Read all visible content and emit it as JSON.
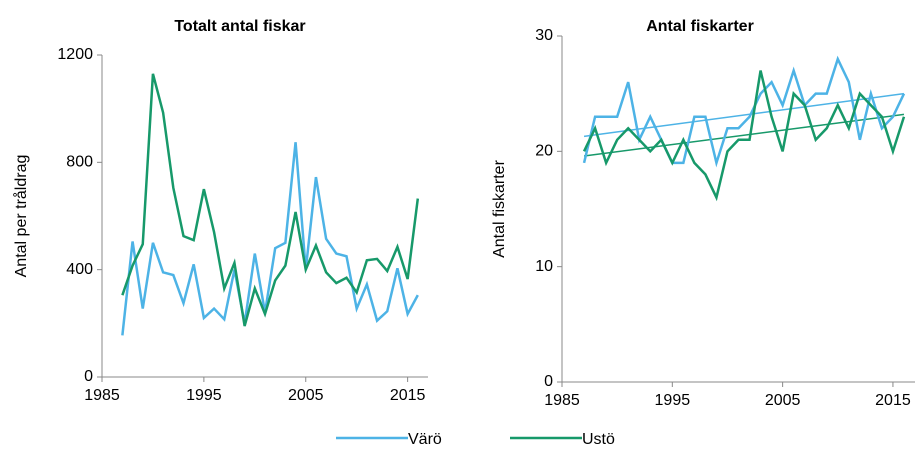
{
  "chart_data": [
    {
      "type": "line",
      "title": "Totalt antal fiskar",
      "y_label": "Antal per tråldrag",
      "x": [
        1987,
        1988,
        1989,
        1990,
        1991,
        1992,
        1993,
        1994,
        1995,
        1996,
        1997,
        1998,
        1999,
        2000,
        2001,
        2002,
        2003,
        2004,
        2005,
        2006,
        2007,
        2008,
        2009,
        2010,
        2011,
        2012,
        2013,
        2014,
        2015,
        2016
      ],
      "series": [
        {
          "name": "Värö",
          "color": "#4db3e6",
          "values": [
            155,
            505,
            255,
            500,
            390,
            380,
            275,
            420,
            220,
            255,
            215,
            400,
            200,
            460,
            240,
            480,
            500,
            875,
            400,
            745,
            515,
            460,
            450,
            255,
            345,
            210,
            245,
            405,
            235,
            305
          ]
        },
        {
          "name": "Ustö",
          "color": "#17996a",
          "values": [
            305,
            415,
            495,
            1130,
            985,
            705,
            525,
            510,
            700,
            540,
            330,
            425,
            190,
            330,
            235,
            360,
            415,
            615,
            400,
            490,
            390,
            350,
            370,
            315,
            435,
            440,
            395,
            485,
            365,
            665
          ]
        }
      ],
      "xlim": [
        1985,
        2017
      ],
      "xticks": [
        1985,
        1995,
        2005,
        2015
      ],
      "ylim": [
        0,
        1200
      ],
      "yticks": [
        0,
        400,
        800,
        1200
      ]
    },
    {
      "type": "line",
      "title": "Antal fiskarter",
      "y_label": "Antal fiskarter",
      "x": [
        1987,
        1988,
        1989,
        1990,
        1991,
        1992,
        1993,
        1994,
        1995,
        1996,
        1997,
        1998,
        1999,
        2000,
        2001,
        2002,
        2003,
        2004,
        2005,
        2006,
        2007,
        2008,
        2009,
        2010,
        2011,
        2012,
        2013,
        2014,
        2015,
        2016
      ],
      "series": [
        {
          "color": "#4db3e6",
          "values": [
            19,
            23,
            23,
            23,
            26,
            21,
            23,
            21,
            19,
            19,
            23,
            23,
            19,
            22,
            22,
            23,
            25,
            26,
            24,
            27,
            24,
            25,
            25,
            28,
            26,
            21,
            25,
            22,
            23,
            25
          ]
        },
        {
          "color": "#17996a",
          "values": [
            20,
            22,
            19,
            21,
            22,
            21,
            20,
            21,
            19,
            21,
            19,
            18,
            16,
            20,
            21,
            21,
            27,
            23,
            20,
            25,
            24,
            21,
            22,
            24,
            22,
            25,
            24,
            23,
            20,
            23
          ]
        }
      ],
      "trendlines": [
        {
          "color": "#4db3e6",
          "x": [
            1987,
            2016
          ],
          "values": [
            21.3,
            25.0
          ]
        },
        {
          "color": "#17996a",
          "x": [
            1987,
            2016
          ],
          "values": [
            19.6,
            23.2
          ]
        }
      ],
      "xlim": [
        1985,
        2017
      ],
      "xticks": [
        1985,
        1995,
        2005,
        2015
      ],
      "ylim": [
        0,
        30
      ],
      "yticks": [
        0,
        10,
        20,
        30
      ]
    }
  ]
}
